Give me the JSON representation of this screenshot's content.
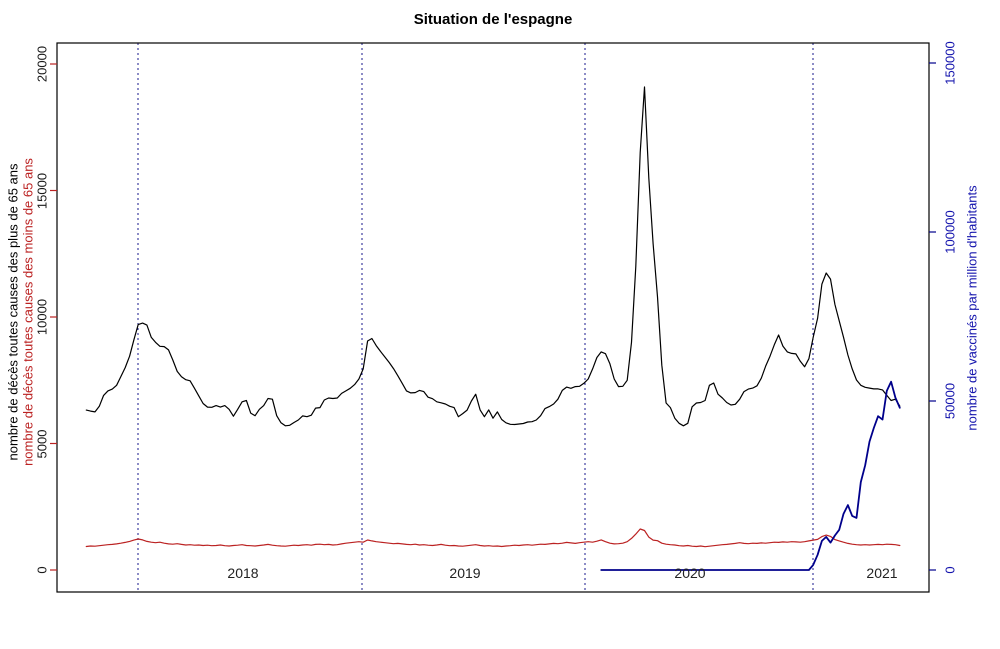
{
  "title": "Situation de l'espagne",
  "axes": {
    "left": {
      "label_over65": "nombre de décès toutes causes des plus de 65 ans",
      "label_under65": "nombre de décès toutes causes des moins de 65 ans",
      "ticks": [
        "0",
        "5000",
        "10000",
        "15000",
        "20000"
      ],
      "tick_values": [
        0,
        5000,
        10000,
        15000,
        20000
      ],
      "range": [
        0,
        20000
      ],
      "label_over65_color": "#000000",
      "label_under65_color": "#bb2222"
    },
    "right": {
      "label": "nombre de vaccinés par million d'habitants",
      "ticks": [
        "0",
        "50000",
        "100000",
        "150000"
      ],
      "tick_values": [
        0,
        50000,
        100000,
        150000
      ],
      "range": [
        0,
        150000
      ],
      "label_color": "#1414ad"
    },
    "x": {
      "year_labels": [
        "2018",
        "2019",
        "2020",
        "2021"
      ],
      "gridline_style": "dotted"
    }
  },
  "colors": {
    "over65_line": "#000000",
    "under65_line": "#bb2222",
    "vaccine_line": "#00008b",
    "gridline": "#1a1a8c",
    "left_tick": "#bb2222",
    "right_tick": "#00008b",
    "year_label": "#222222",
    "tick_label_left": "#1a1a1a"
  },
  "chart_data": {
    "type": "line",
    "title": "Situation de l'espagne",
    "x_unit": "week",
    "x_start": "2017-W40 (approx. October 2017)",
    "x_end": "2021-W19 (approx. May 2021)",
    "x_year_gridlines": [
      2018,
      2019,
      2020,
      2021
    ],
    "ylim_left": [
      0,
      20000
    ],
    "ylim_right": [
      0,
      150000
    ],
    "grid": "vertical dotted year separators only",
    "legend": "axis-colored labels (no legend box)",
    "series": [
      {
        "name": "nombre de décès toutes causes des plus de 65 ans",
        "axis": "left",
        "color": "#000000",
        "start_index": 0,
        "values": [
          6320,
          6280,
          6250,
          6470,
          6900,
          7080,
          7150,
          7300,
          7650,
          8000,
          8450,
          9100,
          9700,
          9760,
          9680,
          9200,
          9000,
          8840,
          8830,
          8700,
          8300,
          7850,
          7640,
          7520,
          7480,
          7180,
          6880,
          6580,
          6440,
          6430,
          6500,
          6440,
          6500,
          6350,
          6080,
          6350,
          6650,
          6700,
          6200,
          6100,
          6350,
          6500,
          6780,
          6750,
          6100,
          5820,
          5700,
          5720,
          5830,
          5930,
          6090,
          6060,
          6120,
          6400,
          6420,
          6720,
          6800,
          6780,
          6800,
          6980,
          7080,
          7180,
          7330,
          7550,
          7950,
          9050,
          9150,
          8870,
          8640,
          8420,
          8200,
          7960,
          7680,
          7380,
          7080,
          7000,
          7010,
          7100,
          7050,
          6830,
          6770,
          6650,
          6610,
          6560,
          6470,
          6420,
          6060,
          6180,
          6320,
          6680,
          6950,
          6330,
          6060,
          6330,
          6000,
          6250,
          5950,
          5820,
          5760,
          5750,
          5770,
          5790,
          5850,
          5860,
          5930,
          6100,
          6380,
          6460,
          6560,
          6750,
          7100,
          7230,
          7180,
          7250,
          7260,
          7380,
          7550,
          7950,
          8400,
          8620,
          8550,
          8150,
          7550,
          7250,
          7260,
          7500,
          9000,
          12000,
          16500,
          19090,
          15500,
          12900,
          10800,
          8100,
          6600,
          6420,
          6000,
          5800,
          5700,
          5800,
          6450,
          6600,
          6620,
          6700,
          7300,
          7390,
          6950,
          6800,
          6620,
          6520,
          6550,
          6750,
          7050,
          7150,
          7190,
          7280,
          7580,
          8050,
          8450,
          8900,
          9290,
          8850,
          8620,
          8560,
          8540,
          8250,
          8030,
          8350,
          9200,
          9950,
          11300,
          11740,
          11500,
          10500,
          9850,
          9200,
          8500,
          7950,
          7510,
          7300,
          7220,
          7190,
          7160,
          7160,
          7120,
          6900,
          6700,
          6750,
          6480
        ]
      },
      {
        "name": "nombre de décès toutes causes des moins de 65 ans",
        "axis": "left",
        "color": "#bb2222",
        "start_index": 0,
        "values": [
          930,
          950,
          940,
          960,
          980,
          1000,
          1010,
          1030,
          1060,
          1090,
          1130,
          1180,
          1225,
          1190,
          1130,
          1100,
          1080,
          1100,
          1060,
          1030,
          1020,
          1040,
          1010,
          990,
          1000,
          980,
          990,
          970,
          980,
          960,
          970,
          990,
          960,
          950,
          970,
          980,
          1000,
          970,
          960,
          950,
          970,
          990,
          1010,
          980,
          960,
          950,
          940,
          960,
          980,
          970,
          990,
          1000,
          980,
          1010,
          1020,
          1000,
          1010,
          990,
          1000,
          1030,
          1060,
          1080,
          1100,
          1120,
          1100,
          1185,
          1150,
          1120,
          1100,
          1080,
          1060,
          1040,
          1050,
          1030,
          1010,
          1000,
          1020,
          990,
          1000,
          980,
          970,
          990,
          1010,
          980,
          960,
          970,
          950,
          940,
          960,
          980,
          1000,
          970,
          950,
          960,
          940,
          950,
          930,
          950,
          960,
          980,
          970,
          990,
          1000,
          980,
          1000,
          1020,
          1010,
          1030,
          1050,
          1040,
          1060,
          1090,
          1070,
          1050,
          1080,
          1100,
          1120,
          1100,
          1140,
          1190,
          1120,
          1060,
          1030,
          1040,
          1060,
          1120,
          1250,
          1420,
          1620,
          1560,
          1300,
          1180,
          1160,
          1060,
          1020,
          1000,
          990,
          960,
          950,
          970,
          940,
          930,
          950,
          920,
          940,
          960,
          980,
          1000,
          1010,
          1030,
          1050,
          1080,
          1050,
          1040,
          1060,
          1050,
          1070,
          1060,
          1080,
          1100,
          1090,
          1110,
          1100,
          1120,
          1110,
          1100,
          1120,
          1150,
          1180,
          1210,
          1320,
          1380,
          1330,
          1200,
          1150,
          1100,
          1050,
          1020,
          1000,
          990,
          1000,
          990,
          1000,
          1010,
          1000,
          1020,
          1010,
          1000,
          970
        ]
      },
      {
        "name": "nombre de vaccinés par million d'habitants",
        "axis": "right",
        "color": "#00008b",
        "start_index": 119,
        "values": [
          0,
          0,
          0,
          0,
          0,
          0,
          0,
          0,
          0,
          0,
          0,
          0,
          0,
          0,
          0,
          0,
          0,
          0,
          0,
          0,
          0,
          0,
          0,
          0,
          0,
          0,
          0,
          0,
          0,
          0,
          0,
          0,
          0,
          0,
          0,
          0,
          0,
          0,
          0,
          0,
          0,
          0,
          0,
          0,
          0,
          0,
          0,
          0,
          0,
          1500,
          4500,
          8600,
          9800,
          8100,
          10200,
          11900,
          16600,
          19200,
          16000,
          15400,
          26000,
          31000,
          38000,
          42000,
          45500,
          44500,
          53000,
          55700,
          51000,
          48000
        ]
      }
    ]
  }
}
